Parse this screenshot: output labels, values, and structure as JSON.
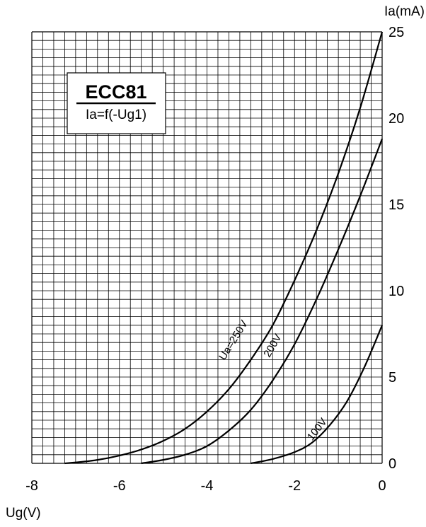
{
  "chart_data": {
    "type": "line",
    "title": "ECC81",
    "subtitle": "Ia=f(-Ug1)",
    "xlabel": "Ug(V)",
    "ylabel": "Ia(mA)",
    "xlim": [
      -8,
      0
    ],
    "ylim": [
      0,
      25
    ],
    "x_ticks": [
      "-8",
      "-6",
      "-4",
      "-2",
      "0"
    ],
    "y_ticks": [
      "0",
      "5",
      "10",
      "15",
      "20",
      "25"
    ],
    "grid": true,
    "grid_minor_x": 0.25,
    "grid_minor_y": 0.5,
    "series": [
      {
        "name": "Ua=250V",
        "x": [
          -7.25,
          -7.0,
          -6.5,
          -6.0,
          -5.5,
          -5.0,
          -4.5,
          -4.0,
          -3.5,
          -3.0,
          -2.5,
          -2.0,
          -1.5,
          -1.0,
          -0.5,
          0.0
        ],
        "y": [
          0.0,
          0.05,
          0.2,
          0.45,
          0.8,
          1.3,
          2.0,
          3.0,
          4.3,
          6.0,
          8.0,
          10.6,
          13.5,
          16.8,
          20.6,
          25.0
        ]
      },
      {
        "name": "200V",
        "x": [
          -5.5,
          -5.0,
          -4.5,
          -4.0,
          -3.5,
          -3.0,
          -2.5,
          -2.0,
          -1.5,
          -1.0,
          -0.5,
          0.0
        ],
        "y": [
          0.0,
          0.2,
          0.5,
          1.0,
          1.9,
          3.1,
          4.8,
          6.9,
          9.5,
          12.4,
          15.5,
          18.8
        ]
      },
      {
        "name": "100V",
        "x": [
          -3.0,
          -2.5,
          -2.0,
          -1.6,
          -1.2,
          -0.8,
          -0.4,
          0.0
        ],
        "y": [
          0.0,
          0.25,
          0.65,
          1.2,
          2.2,
          3.6,
          5.6,
          8.0
        ]
      }
    ]
  }
}
